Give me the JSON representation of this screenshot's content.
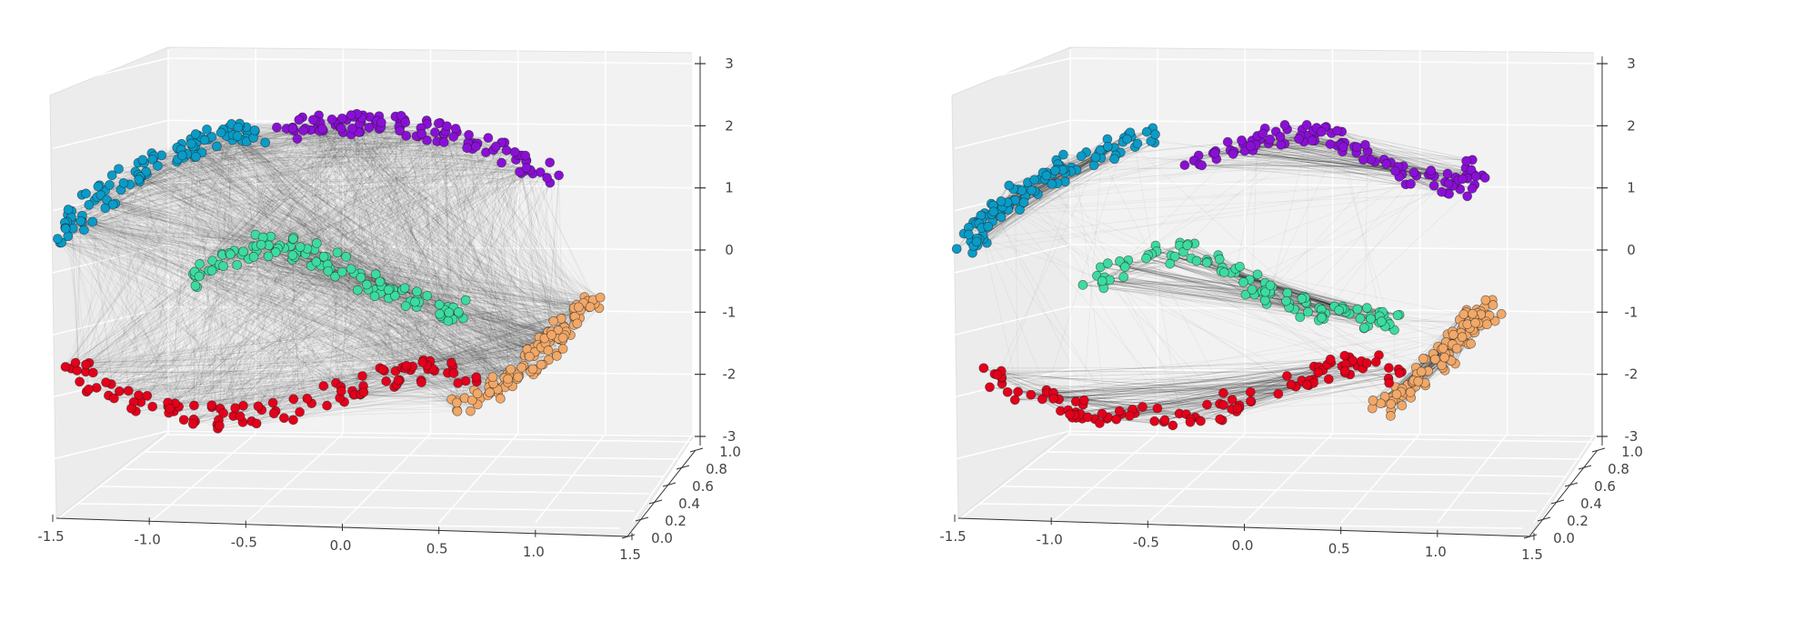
{
  "chart_data": [
    {
      "type": "scatter",
      "subtype": "3d-scatter-with-edges",
      "title": "",
      "xlabel": "",
      "ylabel": "",
      "zlabel": "",
      "xlim": [
        -1.5,
        1.5
      ],
      "ylim": [
        0.0,
        1.0
      ],
      "zlim": [
        -3,
        3
      ],
      "x_ticks": [
        "-1.5",
        "-1.0",
        "-0.5",
        "0.0",
        "0.5",
        "1.0",
        "1.5"
      ],
      "y_ticks": [
        "0.0",
        "0.2",
        "0.4",
        "0.6",
        "0.8",
        "1.0"
      ],
      "z_ticks": [
        "-3",
        "-2",
        "-1",
        "0",
        "1",
        "2",
        "3"
      ],
      "grid": true,
      "edges": "dense",
      "edge_color": "#000000",
      "series": [
        {
          "color": "#0a9bc7",
          "x": [
            -1.45,
            -1.35,
            -1.2,
            -1.05,
            -0.9,
            -0.75,
            -0.6,
            -0.45
          ],
          "z": [
            0.2,
            0.6,
            1.0,
            1.3,
            1.5,
            1.7,
            1.85,
            1.9
          ]
        },
        {
          "color": "#8a0fd6",
          "x": [
            -0.3,
            -0.1,
            0.1,
            0.3,
            0.5,
            0.7,
            0.9,
            1.1
          ],
          "z": [
            1.9,
            2.0,
            2.05,
            2.0,
            1.9,
            1.7,
            1.4,
            1.2
          ]
        },
        {
          "color": "#3ddba0",
          "x": [
            -0.8,
            -0.6,
            -0.4,
            -0.2,
            0.0,
            0.2,
            0.4,
            0.6
          ],
          "z": [
            -0.5,
            -0.2,
            0.1,
            0.0,
            -0.3,
            -0.6,
            -0.8,
            -1.0
          ]
        },
        {
          "color": "#f1a868",
          "x": [
            0.6,
            0.8,
            0.95,
            1.05,
            1.15,
            1.25,
            1.3
          ],
          "z": [
            -2.5,
            -2.2,
            -1.9,
            -1.6,
            -1.3,
            -1.0,
            -0.8
          ]
        },
        {
          "color": "#e3001b",
          "x": [
            -1.4,
            -1.2,
            -0.9,
            -0.6,
            -0.3,
            0.0,
            0.3,
            0.5,
            0.7
          ],
          "z": [
            -1.8,
            -2.3,
            -2.6,
            -2.7,
            -2.6,
            -2.3,
            -2.0,
            -1.9,
            -2.1
          ]
        }
      ]
    },
    {
      "type": "scatter",
      "subtype": "3d-scatter-with-edges",
      "title": "",
      "xlabel": "",
      "ylabel": "",
      "zlabel": "",
      "xlim": [
        -1.5,
        1.5
      ],
      "ylim": [
        0.0,
        1.0
      ],
      "zlim": [
        -3,
        3
      ],
      "x_ticks": [
        "-1.5",
        "-1.0",
        "-0.5",
        "0.0",
        "0.5",
        "1.0",
        "1.5"
      ],
      "y_ticks": [
        "0.0",
        "0.2",
        "0.4",
        "0.6",
        "0.8",
        "1.0"
      ],
      "z_ticks": [
        "-3",
        "-2",
        "-1",
        "0",
        "1",
        "2",
        "3"
      ],
      "grid": true,
      "edges": "sparse",
      "edge_color": "#000000",
      "series": [
        {
          "color": "#0a9bc7",
          "x": [
            -1.45,
            -1.35,
            -1.2,
            -1.05,
            -0.9,
            -0.75,
            -0.6,
            -0.45
          ],
          "z": [
            0.0,
            0.4,
            0.8,
            1.1,
            1.4,
            1.6,
            1.75,
            1.85
          ]
        },
        {
          "color": "#8a0fd6",
          "x": [
            -0.3,
            -0.1,
            0.1,
            0.3,
            0.5,
            0.7,
            0.9,
            1.1,
            1.2
          ],
          "z": [
            1.4,
            1.6,
            1.8,
            1.9,
            1.8,
            1.5,
            1.2,
            1.0,
            1.3
          ]
        },
        {
          "color": "#3ddba0",
          "x": [
            -0.8,
            -0.6,
            -0.4,
            -0.2,
            0.0,
            0.2,
            0.4,
            0.6,
            0.8
          ],
          "z": [
            -0.5,
            -0.3,
            0.0,
            -0.1,
            -0.5,
            -0.8,
            -1.0,
            -1.1,
            -1.2
          ]
        },
        {
          "color": "#f1a868",
          "x": [
            0.7,
            0.85,
            1.0,
            1.1,
            1.2,
            1.3
          ],
          "z": [
            -2.6,
            -2.2,
            -1.8,
            -1.4,
            -1.1,
            -0.9
          ]
        },
        {
          "color": "#e3001b",
          "x": [
            -1.3,
            -1.1,
            -0.8,
            -0.5,
            -0.2,
            0.1,
            0.4,
            0.6,
            0.8
          ],
          "z": [
            -2.0,
            -2.4,
            -2.6,
            -2.7,
            -2.6,
            -2.3,
            -2.0,
            -1.8,
            -2.0
          ]
        }
      ]
    }
  ]
}
